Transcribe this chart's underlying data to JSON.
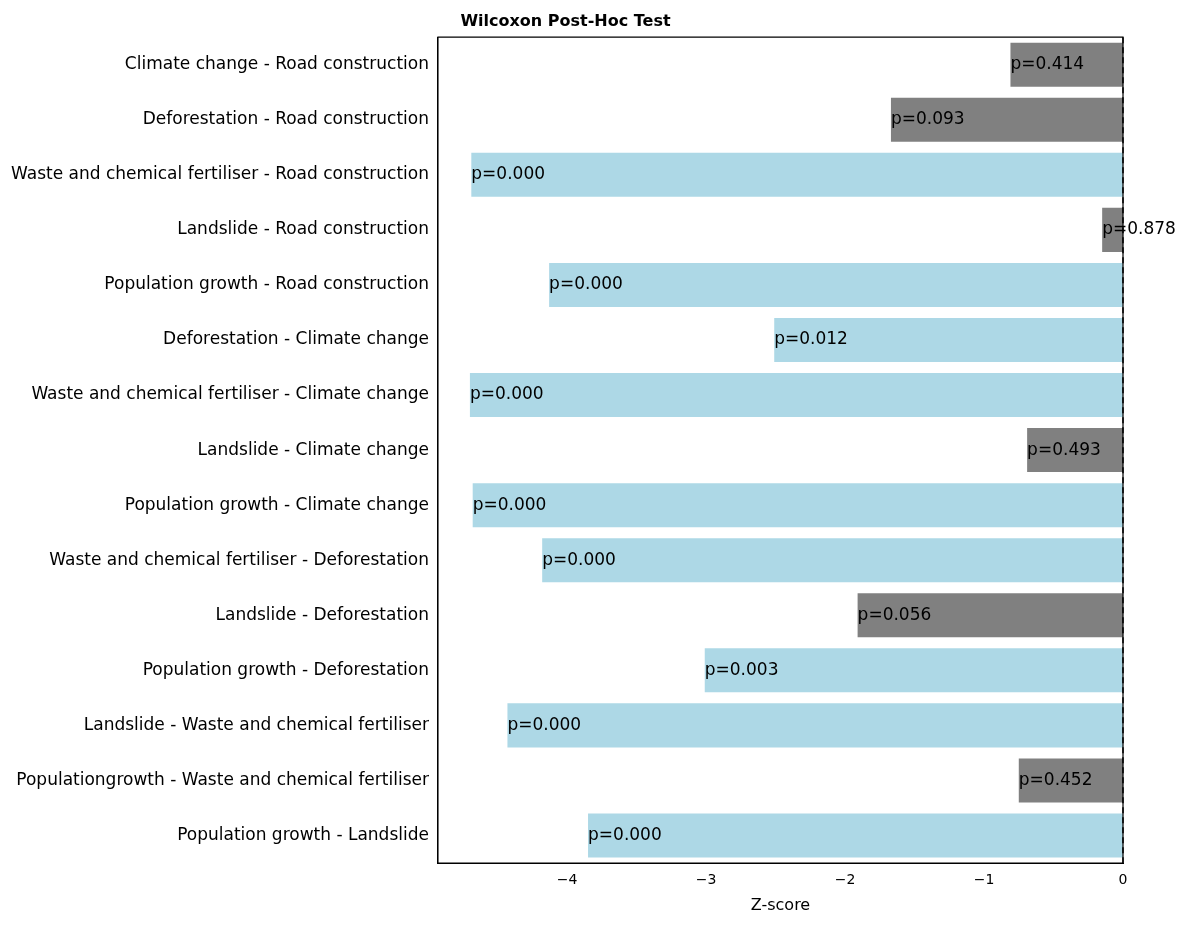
{
  "chart_data": {
    "type": "bar",
    "orientation": "horizontal",
    "title": "Wilcoxon Post-Hoc Test",
    "xlabel": "Z-score",
    "categories": [
      "Climate change - Road construction",
      "Deforestation - Road construction",
      "Waste and chemical fertiliser - Road construction",
      "Landslide - Road construction",
      "Population growth - Road construction",
      "Deforestation - Climate change",
      "Waste and chemical fertiliser - Climate change",
      "Landslide - Climate change",
      "Population growth - Climate change",
      "Waste and chemical fertiliser - Deforestation",
      "Landslide - Deforestation",
      "Population growth - Deforestation",
      "Landslide - Waste and chemical fertiliser",
      "Populationgrowth - Waste and chemical fertiliser",
      "Population growth - Landslide"
    ],
    "values": [
      -0.81,
      -1.67,
      -4.69,
      -0.15,
      -4.13,
      -2.51,
      -4.7,
      -0.69,
      -4.68,
      -4.18,
      -1.91,
      -3.01,
      -4.43,
      -0.75,
      -3.85
    ],
    "colors": [
      "#808080",
      "#808080",
      "#add8e6",
      "#808080",
      "#add8e6",
      "#add8e6",
      "#add8e6",
      "#808080",
      "#add8e6",
      "#add8e6",
      "#808080",
      "#add8e6",
      "#add8e6",
      "#808080",
      "#add8e6"
    ],
    "annotations": [
      {
        "text": "p=0.414",
        "x": -0.81,
        "y": "Climate change - Road construction"
      },
      {
        "text": "p=0.093",
        "x": -1.67,
        "y": "Deforestation - Road construction"
      },
      {
        "text": "p=0.000",
        "x": -4.69,
        "y": "Waste and chemical fertiliser - Road construction"
      },
      {
        "text": "p=0.878",
        "x": -0.15,
        "y": "Landslide - Road construction"
      },
      {
        "text": "p=0.000",
        "x": -4.13,
        "y": "Population growth - Road construction"
      },
      {
        "text": "p=0.012",
        "x": -2.51,
        "y": "Deforestation - Climate change"
      },
      {
        "text": "p=0.000",
        "x": -4.7,
        "y": "Waste and chemical fertiliser - Climate change"
      },
      {
        "text": "p=0.493",
        "x": -0.69,
        "y": "Landslide - Climate change"
      },
      {
        "text": "p=0.000",
        "x": -4.68,
        "y": "Population growth - Climate change"
      },
      {
        "text": "p=0.000",
        "x": -4.18,
        "y": "Waste and chemical fertiliser - Deforestation"
      },
      {
        "text": "p=0.056",
        "x": -1.91,
        "y": "Landslide - Deforestation"
      },
      {
        "text": "p=0.003",
        "x": -3.01,
        "y": "Population growth - Deforestation"
      },
      {
        "text": "p=0.000",
        "x": -4.43,
        "y": "Landslide - Waste and chemical fertiliser"
      },
      {
        "text": "p=0.452",
        "x": -0.75,
        "y": "Populationgrowth - Waste and chemical fertiliser"
      },
      {
        "text": "p=0.000",
        "x": -3.85,
        "y": "Population growth - Landslide"
      }
    ],
    "xlim": [
      -4.93,
      0
    ],
    "xticks": [
      {
        "value": -4,
        "label": "−4"
      },
      {
        "value": -3,
        "label": "−3"
      },
      {
        "value": -2,
        "label": "−2"
      },
      {
        "value": -1,
        "label": "−1"
      },
      0
    ],
    "ref_lines": [
      {
        "axis": "x",
        "value": 0,
        "color": "#000000",
        "line_style": "dashed"
      }
    ],
    "grid": false,
    "legend": false
  }
}
